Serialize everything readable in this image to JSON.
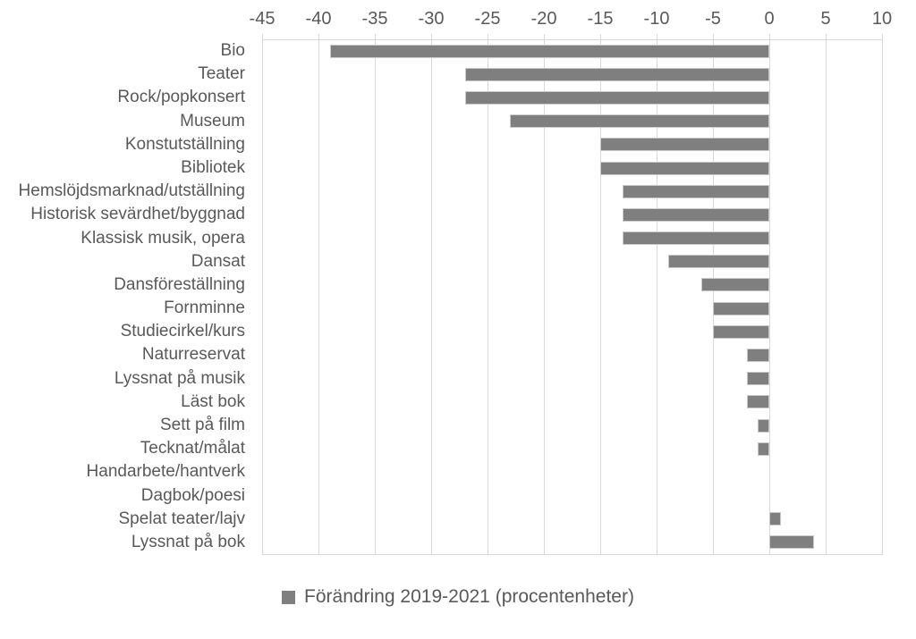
{
  "chart_data": {
    "type": "bar",
    "orientation": "horizontal",
    "title": "",
    "xlabel": "",
    "ylabel": "",
    "xlim": [
      -45,
      10
    ],
    "ticks": [
      -45,
      -40,
      -35,
      -30,
      -25,
      -20,
      -15,
      -10,
      -5,
      0,
      5,
      10
    ],
    "grid": true,
    "legend_position": "bottom",
    "categories": [
      "Bio",
      "Teater",
      "Rock/popkonsert",
      "Museum",
      "Konstutställning",
      "Bibliotek",
      "Hemslöjdsmarknad/utställning",
      "Historisk sevärdhet/byggnad",
      "Klassisk musik, opera",
      "Dansat",
      "Dansföreställning",
      "Fornminne",
      "Studiecirkel/kurs",
      "Naturreservat",
      "Lyssnat på musik",
      "Läst bok",
      "Sett på film",
      "Tecknat/målat",
      "Handarbete/hantverk",
      "Dagbok/poesi",
      "Spelat teater/lajv",
      "Lyssnat på bok"
    ],
    "series": [
      {
        "name": "Förändring 2019-2021 (procentenheter)",
        "values": [
          -39,
          -27,
          -27,
          -23,
          -15,
          -15,
          -13,
          -13,
          -13,
          -9,
          -6,
          -5,
          -5,
          -2,
          -2,
          -2,
          -1,
          -1,
          0,
          0,
          1,
          4
        ]
      }
    ],
    "colors": {
      "bar_fill": "#7f7f7f",
      "bar_border": "#c9c9c9",
      "gridline": "#d9d9d9",
      "axis_text": "#595959"
    }
  },
  "legend": {
    "label": "Förändring 2019-2021 (procentenheter)",
    "swatch_color": "#7f7f7f"
  }
}
